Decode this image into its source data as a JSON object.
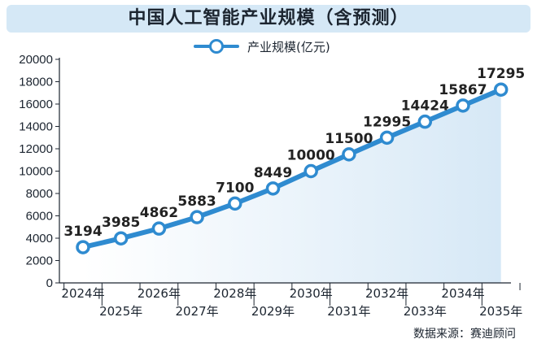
{
  "title": "中国人工智能产业规模（含预测）",
  "source": "数据来源：赛迪顾问",
  "colors": {
    "line": "#2f8bd0",
    "area": "#d6e8f6",
    "title_bg": "#d5e8f6",
    "text": "#1c2530"
  },
  "chart_data": {
    "type": "line",
    "title": "中国人工智能产业规模（含预测）",
    "categories": [
      "2024年",
      "2025年",
      "2026年",
      "2027年",
      "2028年",
      "2029年",
      "2030年",
      "2031年",
      "2032年",
      "2033年",
      "2034年",
      "2035年"
    ],
    "series": [
      {
        "name": "产业规模(亿元)",
        "values": [
          3194,
          3985,
          4862,
          5883,
          7100,
          8449,
          10000,
          11500,
          12995,
          14424,
          15867,
          17295
        ]
      }
    ],
    "yticks": [
      0,
      2000,
      4000,
      6000,
      8000,
      10000,
      12000,
      14000,
      16000,
      18000,
      20000
    ],
    "ylim": [
      0,
      20000
    ],
    "xlabel": "",
    "ylabel": "",
    "grid": false,
    "legend": "top-center",
    "filled_area": true
  }
}
